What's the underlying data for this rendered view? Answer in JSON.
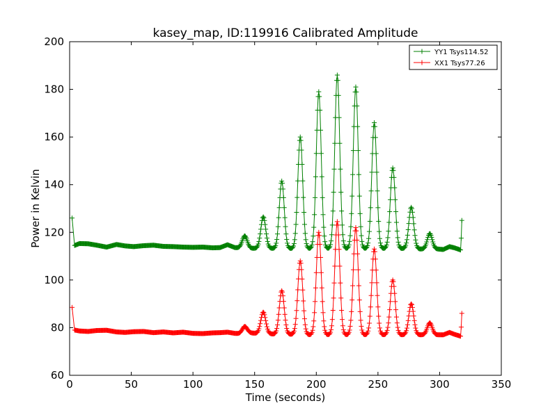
{
  "chart_data": {
    "type": "line",
    "title": "kasey_map, ID:119916 Calibrated Amplitude",
    "xlabel": "Time (seconds)",
    "ylabel": "Power in Kelvin",
    "xlim": [
      0,
      350
    ],
    "ylim": [
      60,
      200
    ],
    "xticks": [
      0,
      50,
      100,
      150,
      200,
      250,
      300,
      350
    ],
    "yticks": [
      60,
      80,
      100,
      120,
      140,
      160,
      180,
      200
    ],
    "grid": false,
    "legend_position": "top-right",
    "series": [
      {
        "name": "YY1 Tsys114.52",
        "color": "#007f00",
        "marker": "+",
        "baseline_points": [
          [
            2,
            126
          ],
          [
            4,
            114.5
          ],
          [
            8,
            115.3
          ],
          [
            15,
            115.2
          ],
          [
            22,
            114.6
          ],
          [
            30,
            113.8
          ],
          [
            38,
            114.9
          ],
          [
            45,
            114.3
          ],
          [
            52,
            114.0
          ],
          [
            60,
            114.4
          ],
          [
            68,
            114.6
          ],
          [
            76,
            114.1
          ],
          [
            84,
            114.0
          ],
          [
            92,
            113.8
          ],
          [
            100,
            113.7
          ],
          [
            108,
            113.8
          ],
          [
            116,
            113.5
          ],
          [
            122,
            113.6
          ],
          [
            128,
            114.8
          ],
          [
            134,
            113.6
          ],
          [
            138,
            113.5
          ],
          [
            146,
            113.3
          ],
          [
            152,
            113.3
          ],
          [
            163,
            113.3
          ],
          [
            167,
            113.2
          ],
          [
            178,
            113.2
          ],
          [
            182,
            113.2
          ],
          [
            193,
            113.2
          ],
          [
            197,
            113.2
          ],
          [
            208,
            113.2
          ],
          [
            212,
            113.2
          ],
          [
            223,
            113.2
          ],
          [
            227,
            113.2
          ],
          [
            238,
            113.2
          ],
          [
            242,
            113.2
          ],
          [
            253,
            113.2
          ],
          [
            257,
            113.2
          ],
          [
            268,
            113.2
          ],
          [
            272,
            113.2
          ],
          [
            283,
            113.0
          ],
          [
            287,
            113.0
          ],
          [
            298,
            113.0
          ],
          [
            303,
            112.8
          ],
          [
            308,
            114.0
          ],
          [
            312,
            113.5
          ],
          [
            317,
            112.6
          ],
          [
            318,
            125
          ]
        ],
        "peaks": [
          {
            "x": 142,
            "y": 118.5,
            "width": 2.0
          },
          {
            "x": 157,
            "y": 126.5,
            "width": 2.0
          },
          {
            "x": 172,
            "y": 141.5,
            "width": 2.0
          },
          {
            "x": 187,
            "y": 160,
            "width": 2.0
          },
          {
            "x": 202,
            "y": 179,
            "width": 2.0
          },
          {
            "x": 217,
            "y": 186,
            "width": 2.0
          },
          {
            "x": 232,
            "y": 181,
            "width": 2.0
          },
          {
            "x": 247,
            "y": 166,
            "width": 2.0
          },
          {
            "x": 262,
            "y": 147,
            "width": 2.0
          },
          {
            "x": 277,
            "y": 130.5,
            "width": 2.0
          },
          {
            "x": 292,
            "y": 119.5,
            "width": 2.0
          }
        ]
      },
      {
        "name": "XX1 Tsys77.26",
        "color": "#ff0000",
        "marker": "+",
        "baseline_points": [
          [
            2,
            88.5
          ],
          [
            4,
            79
          ],
          [
            8,
            78.6
          ],
          [
            15,
            78.4
          ],
          [
            22,
            78.8
          ],
          [
            30,
            78.9
          ],
          [
            38,
            78.2
          ],
          [
            45,
            78.0
          ],
          [
            52,
            78.3
          ],
          [
            60,
            78.4
          ],
          [
            68,
            77.9
          ],
          [
            76,
            78.2
          ],
          [
            84,
            77.8
          ],
          [
            92,
            78.1
          ],
          [
            100,
            77.6
          ],
          [
            108,
            77.5
          ],
          [
            116,
            77.8
          ],
          [
            122,
            77.9
          ],
          [
            128,
            78.1
          ],
          [
            134,
            77.6
          ],
          [
            138,
            77.5
          ],
          [
            146,
            77.8
          ],
          [
            152,
            77.6
          ],
          [
            163,
            77.4
          ],
          [
            167,
            77.2
          ],
          [
            178,
            77.2
          ],
          [
            182,
            77.2
          ],
          [
            193,
            77.0
          ],
          [
            197,
            77.0
          ],
          [
            208,
            77.0
          ],
          [
            212,
            77.0
          ],
          [
            223,
            77.0
          ],
          [
            227,
            77.0
          ],
          [
            238,
            77.0
          ],
          [
            242,
            77.0
          ],
          [
            253,
            77.0
          ],
          [
            257,
            77.0
          ],
          [
            268,
            77.0
          ],
          [
            272,
            77.0
          ],
          [
            283,
            77.0
          ],
          [
            287,
            77.0
          ],
          [
            298,
            77.0
          ],
          [
            303,
            77.0
          ],
          [
            308,
            78.0
          ],
          [
            312,
            77.2
          ],
          [
            317,
            76.4
          ],
          [
            318,
            86
          ]
        ],
        "peaks": [
          {
            "x": 142,
            "y": 80.5,
            "width": 2.0
          },
          {
            "x": 157,
            "y": 86.5,
            "width": 2.0
          },
          {
            "x": 172,
            "y": 95.5,
            "width": 2.0
          },
          {
            "x": 187,
            "y": 108,
            "width": 2.0
          },
          {
            "x": 202,
            "y": 120,
            "width": 2.0
          },
          {
            "x": 217,
            "y": 124.5,
            "width": 2.0
          },
          {
            "x": 232,
            "y": 122,
            "width": 2.0
          },
          {
            "x": 247,
            "y": 113,
            "width": 2.0
          },
          {
            "x": 262,
            "y": 100,
            "width": 2.0
          },
          {
            "x": 277,
            "y": 90,
            "width": 2.0
          },
          {
            "x": 292,
            "y": 82,
            "width": 2.0
          }
        ]
      }
    ]
  }
}
